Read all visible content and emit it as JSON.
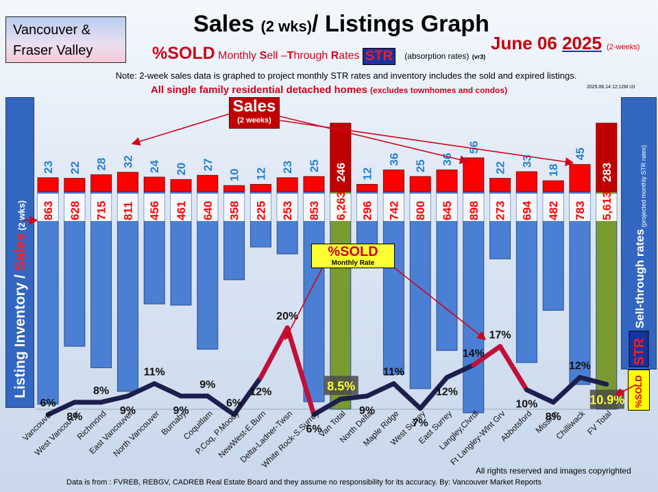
{
  "region": {
    "line1": "Vancouver &",
    "line2": "Fraser Valley"
  },
  "title": {
    "main": "Sales",
    "paren": "(2 wks)",
    "rest": "/ Listings Graph"
  },
  "subtitle": {
    "sold": "%SOLD",
    "monthly": " Monthly ",
    "s": "S",
    "ell": "ell –",
    "t": "T",
    "hrough": "hrough ",
    "r": "R",
    "ates": "ates ",
    "str": "STR",
    "absorption": "(absorption rates)",
    "version": "(vr3)"
  },
  "date": {
    "md": "June 06 ",
    "year": "2025",
    "period": "(2-weeks)"
  },
  "note": "Note: 2-week sales data is graphed to project monthly STR rates and inventory includes the sold and expired listings.",
  "subnote": {
    "main": "All single family residential detached homes",
    "paren": "(excludes townhomes and condos)"
  },
  "stamp": "2025.06.14 12:12M r2r",
  "callouts": {
    "sales_line1": "Sales",
    "sales_line2": "(2 weeks)",
    "sold_line1": "%SOLD",
    "sold_line2": "Monthly Rate"
  },
  "left_axis": {
    "part1": "Listing Inventory / ",
    "part2": "Sales",
    "part3": " (2 wks)"
  },
  "right_axis": {
    "main": "Sell-through rates",
    "paren": "(projected monthly STR rates)",
    "str": "STR"
  },
  "fv_str_label": "%SOLD",
  "footer": {
    "rights": "All rights reserved and  images copyrighted",
    "source": "Data is from : FVREB, REBGV, CADREB Real Estate Board and they assume no responsibility for its accuracy. By: Vancouver Market Reports"
  },
  "chart_data": {
    "type": "bar",
    "categories": [
      "Vancouver",
      "West Vancouver",
      "Richmond",
      "East Vancouver",
      "North Vancouver",
      "Burnaby",
      "Coquitlam",
      "P.Coq, P.Moody",
      "NewWest-E.Burn",
      "Delta-Ladner-Twsn",
      "White Rock-S.Surrey",
      "Van Total",
      "North Delta",
      "Maple Ridge",
      "West Surrey",
      "East Surrey",
      "Langley,Clvrdl",
      "Ft Langley-Wlnt Grv",
      "Abbotsford",
      "Mission",
      "Chilliwack",
      "FV Total"
    ],
    "series": [
      {
        "name": "Sales",
        "values": [
          23,
          22,
          28,
          32,
          24,
          20,
          27,
          10,
          12,
          23,
          25,
          246,
          12,
          36,
          25,
          36,
          56,
          22,
          33,
          18,
          45,
          283
        ],
        "labels": [
          "23",
          "22",
          "28",
          "32",
          "24",
          "20",
          "27",
          "10",
          "12",
          "23",
          "25",
          "246",
          "12",
          "36",
          "25",
          "36",
          "56",
          "22",
          "33",
          "18",
          "45",
          "283"
        ]
      },
      {
        "name": "Listing Inventory",
        "values": [
          863,
          628,
          715,
          811,
          456,
          461,
          640,
          358,
          225,
          253,
          853,
          6263,
          296,
          742,
          800,
          645,
          898,
          273,
          694,
          482,
          783,
          5613
        ],
        "labels": [
          "863",
          "628",
          "715",
          "811",
          "456",
          "461",
          "640",
          "358",
          "225",
          "253",
          "853",
          "6,263",
          "296",
          "742",
          "800",
          "645",
          "898",
          "273",
          "694",
          "482",
          "783",
          "5,613"
        ]
      },
      {
        "name": "%SOLD",
        "values": [
          6,
          8,
          8,
          9,
          11,
          9,
          9,
          6,
          12,
          20,
          6,
          8.5,
          9,
          11,
          7,
          12,
          14,
          17,
          10,
          8,
          12,
          10.9
        ],
        "labels": [
          "6%",
          "8%",
          "8%",
          "9%",
          "11%",
          "9%",
          "9%",
          "6%",
          "12%",
          "20%",
          "6%",
          "8.5%",
          "9%",
          "11%",
          "7%",
          "12%",
          "14%",
          "17%",
          "10%",
          "8%",
          "12%",
          "10.9%"
        ]
      }
    ],
    "total_categories": [
      "Van Total",
      "FV Total"
    ],
    "colors": {
      "sales": "#ff0000",
      "sales_total": "#c00000",
      "inventory": "#4a7fd4",
      "inventory_total": "#7a9a30",
      "sales_label": "#2a7fd0",
      "inventory_label": "#ff0000",
      "line": "#1c1f4d",
      "line_peak": "#c0103a"
    }
  }
}
